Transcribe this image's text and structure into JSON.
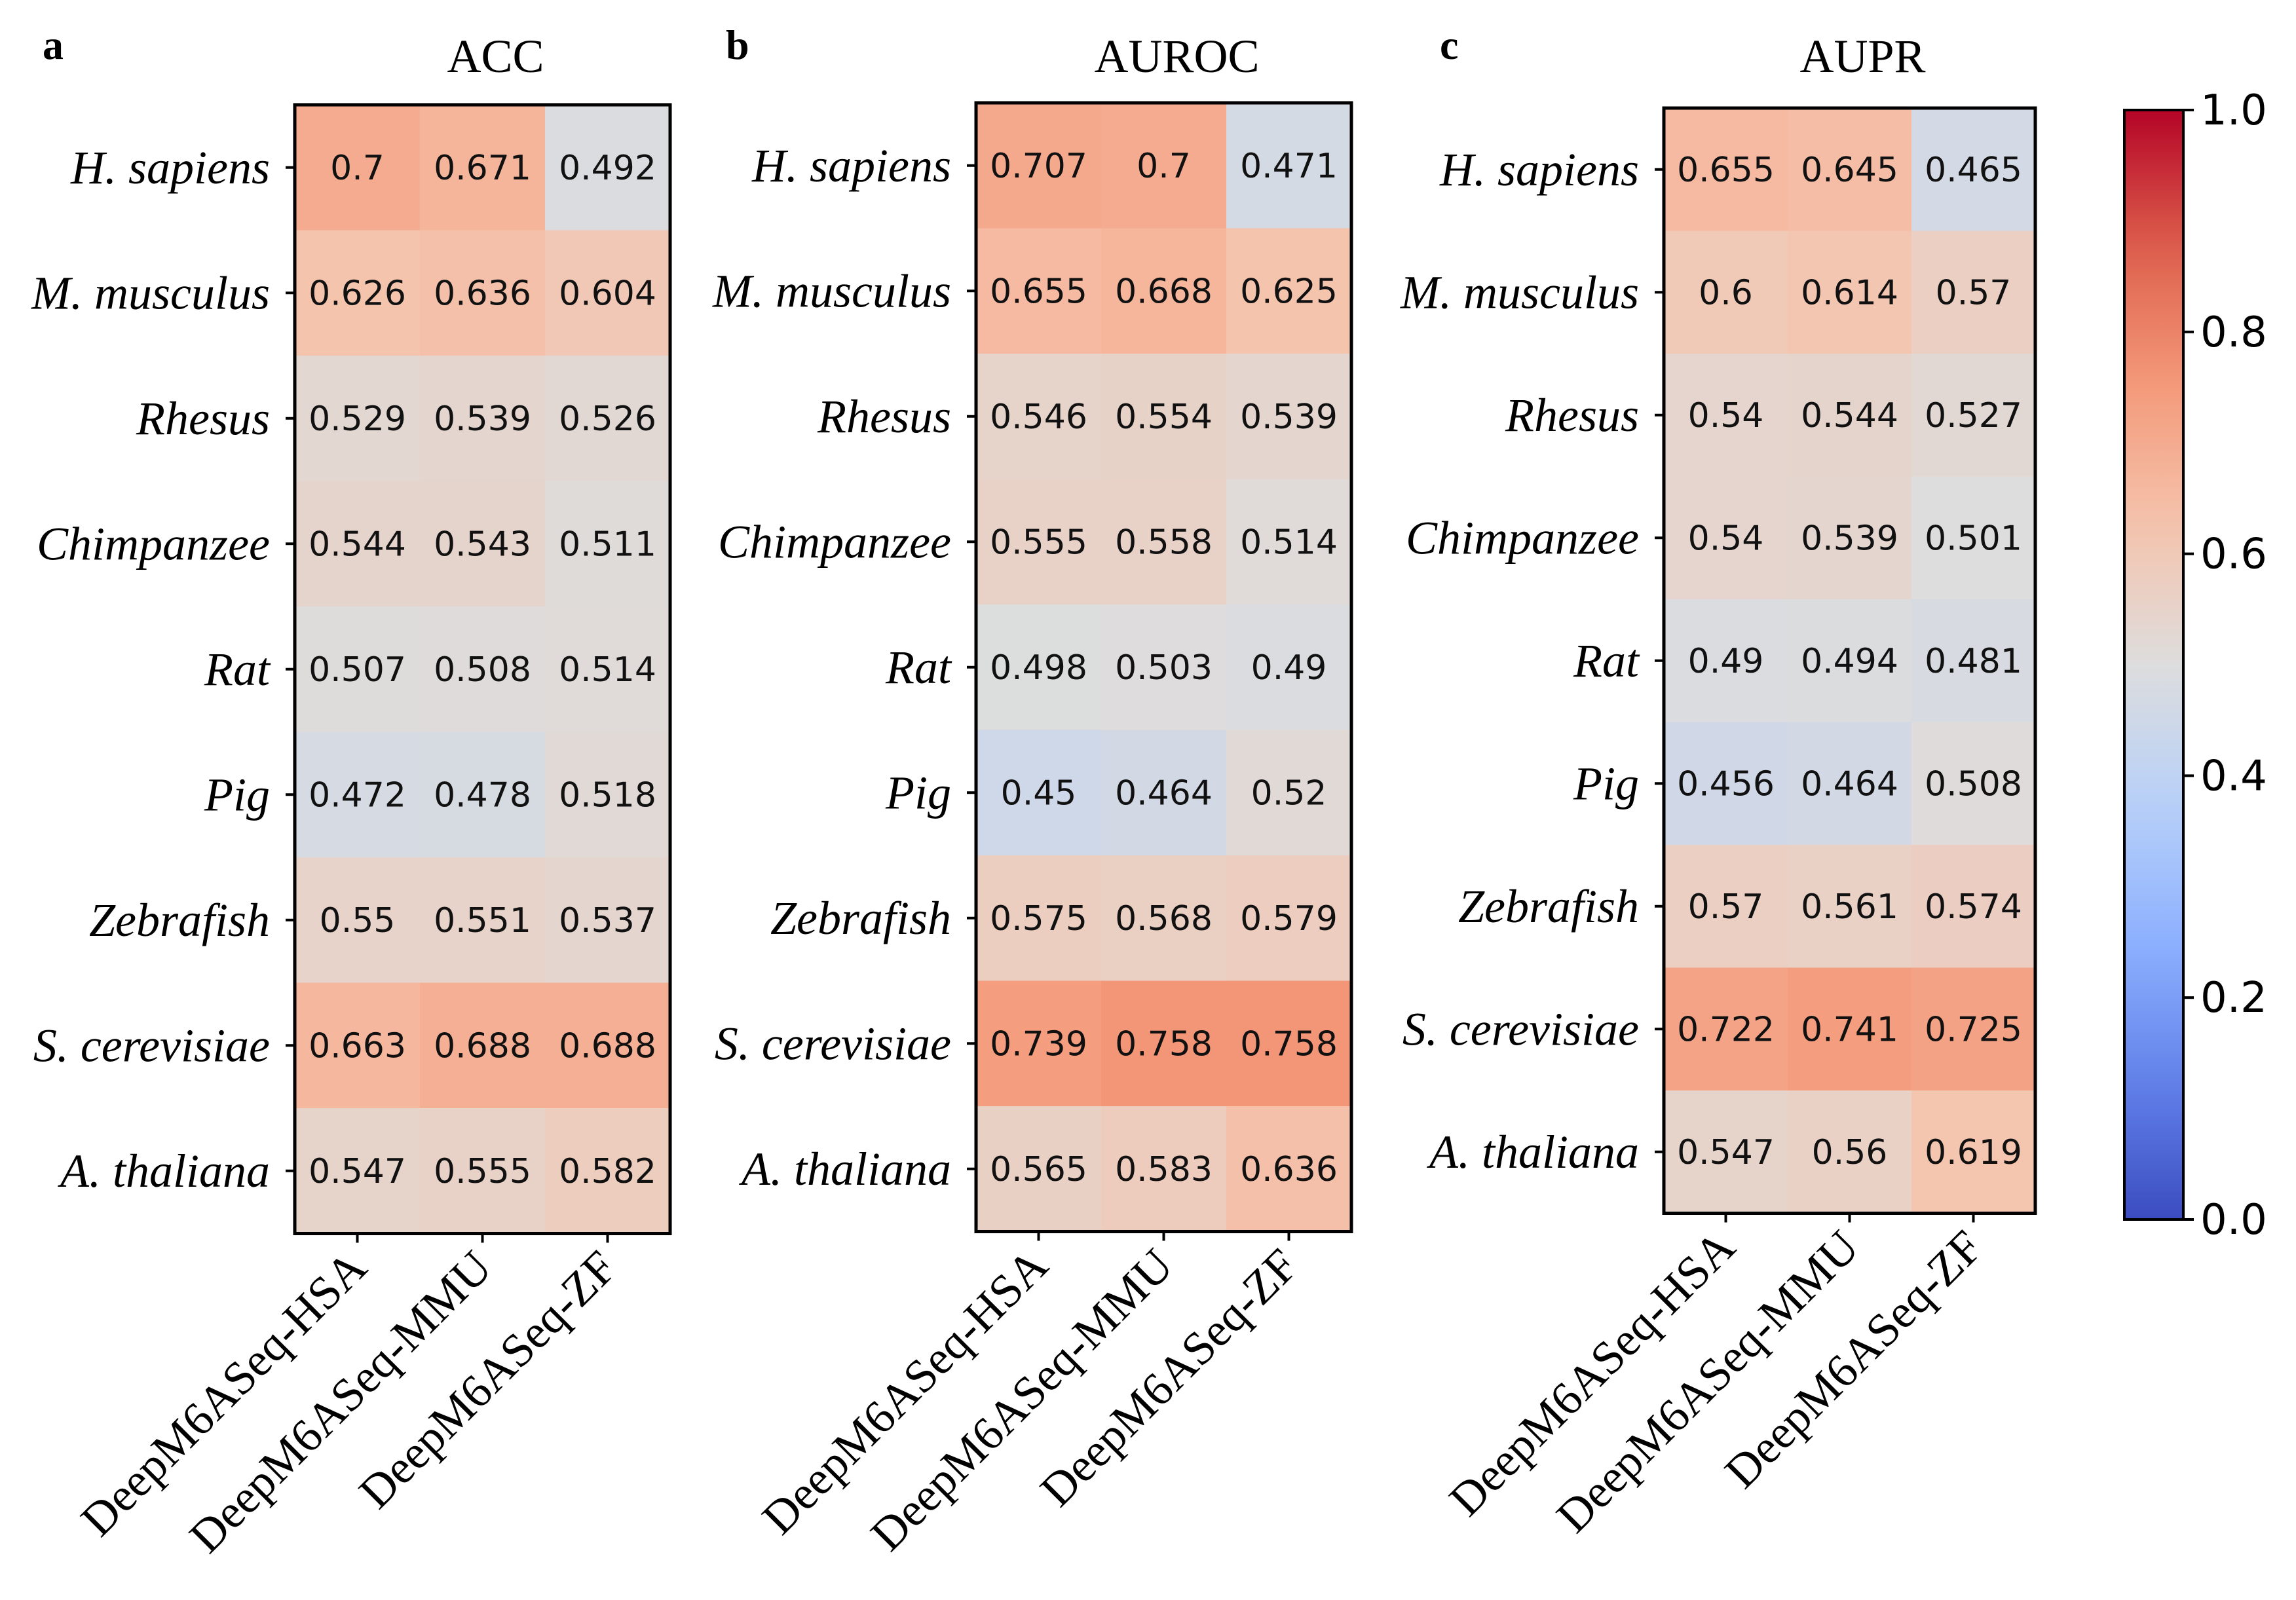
{
  "chart_data": [
    {
      "type": "heatmap",
      "panel": "a",
      "title": "ACC",
      "rows": [
        "H. sapiens",
        "M. musculus",
        "Rhesus",
        "Chimpanzee",
        "Rat",
        "Pig",
        "Zebrafish",
        "S. cerevisiae",
        "A. thaliana"
      ],
      "columns": [
        "DeepM6ASeq-HSA",
        "DeepM6ASeq-MMU",
        "DeepM6ASeq-ZF"
      ],
      "values": [
        [
          "0.7",
          "0.671",
          "0.492"
        ],
        [
          "0.626",
          "0.636",
          "0.604"
        ],
        [
          "0.529",
          "0.539",
          "0.526"
        ],
        [
          "0.544",
          "0.543",
          "0.511"
        ],
        [
          "0.507",
          "0.508",
          "0.514"
        ],
        [
          "0.472",
          "0.478",
          "0.518"
        ],
        [
          "0.55",
          "0.551",
          "0.537"
        ],
        [
          "0.663",
          "0.688",
          "0.688"
        ],
        [
          "0.547",
          "0.555",
          "0.582"
        ]
      ]
    },
    {
      "type": "heatmap",
      "panel": "b",
      "title": "AUROC",
      "rows": [
        "H. sapiens",
        "M. musculus",
        "Rhesus",
        "Chimpanzee",
        "Rat",
        "Pig",
        "Zebrafish",
        "S. cerevisiae",
        "A. thaliana"
      ],
      "columns": [
        "DeepM6ASeq-HSA",
        "DeepM6ASeq-MMU",
        "DeepM6ASeq-ZF"
      ],
      "values": [
        [
          "0.707",
          "0.7",
          "0.471"
        ],
        [
          "0.655",
          "0.668",
          "0.625"
        ],
        [
          "0.546",
          "0.554",
          "0.539"
        ],
        [
          "0.555",
          "0.558",
          "0.514"
        ],
        [
          "0.498",
          "0.503",
          "0.49"
        ],
        [
          "0.45",
          "0.464",
          "0.52"
        ],
        [
          "0.575",
          "0.568",
          "0.579"
        ],
        [
          "0.739",
          "0.758",
          "0.758"
        ],
        [
          "0.565",
          "0.583",
          "0.636"
        ]
      ]
    },
    {
      "type": "heatmap",
      "panel": "c",
      "title": "AUPR",
      "rows": [
        "H. sapiens",
        "M. musculus",
        "Rhesus",
        "Chimpanzee",
        "Rat",
        "Pig",
        "Zebrafish",
        "S. cerevisiae",
        "A. thaliana"
      ],
      "columns": [
        "DeepM6ASeq-HSA",
        "DeepM6ASeq-MMU",
        "DeepM6ASeq-ZF"
      ],
      "values": [
        [
          "0.655",
          "0.645",
          "0.465"
        ],
        [
          "0.6",
          "0.614",
          "0.57"
        ],
        [
          "0.54",
          "0.544",
          "0.527"
        ],
        [
          "0.54",
          "0.539",
          "0.501"
        ],
        [
          "0.49",
          "0.494",
          "0.481"
        ],
        [
          "0.456",
          "0.464",
          "0.508"
        ],
        [
          "0.57",
          "0.561",
          "0.574"
        ],
        [
          "0.722",
          "0.741",
          "0.725"
        ],
        [
          "0.547",
          "0.56",
          "0.619"
        ]
      ]
    }
  ],
  "colorbar": {
    "colormap": "coolwarm",
    "range": [
      0,
      1
    ],
    "ticks": [
      "0.0",
      "0.2",
      "0.4",
      "0.6",
      "0.8",
      "1.0"
    ]
  }
}
